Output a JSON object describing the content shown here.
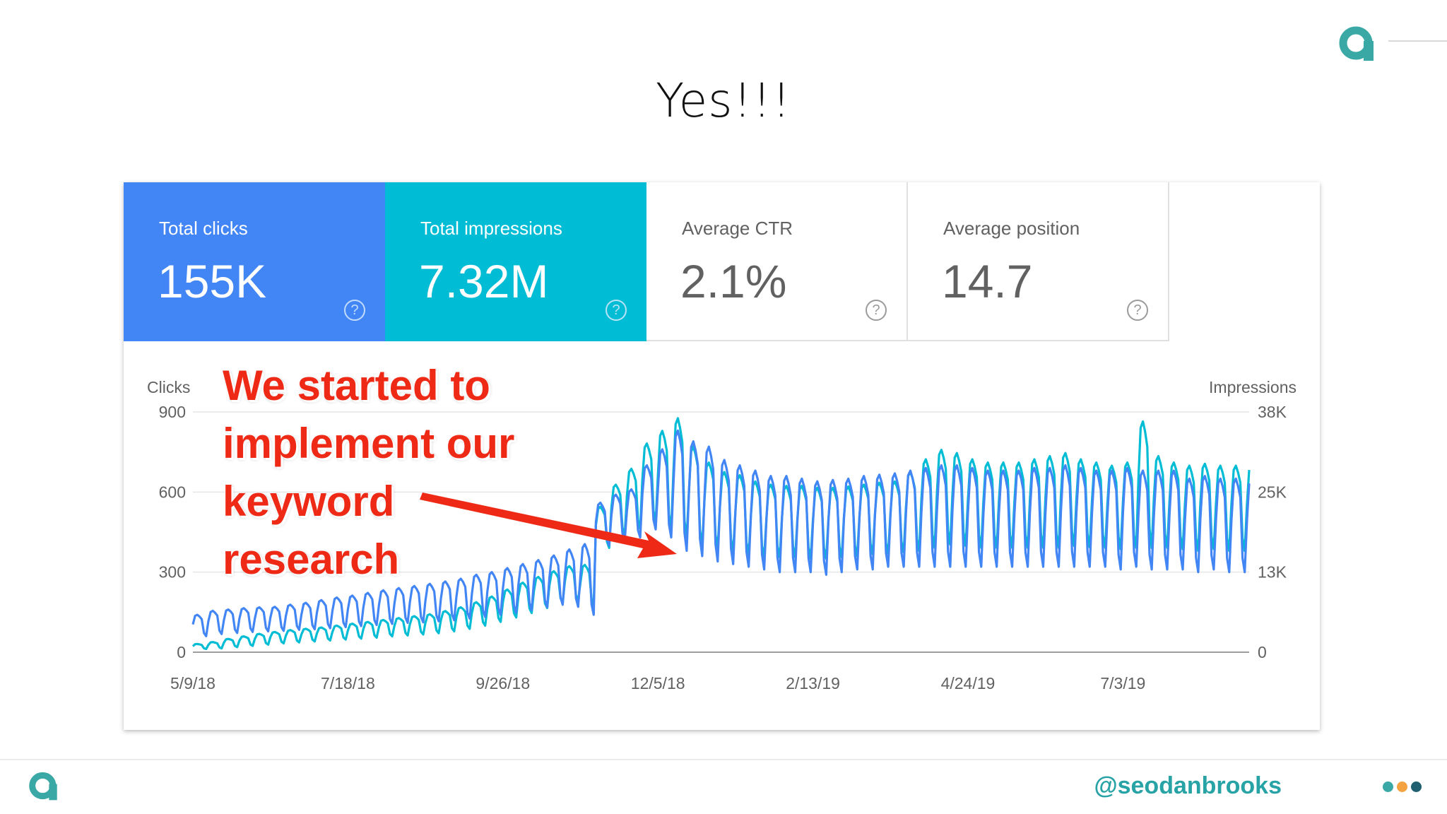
{
  "slide": {
    "title": "Yes!!!",
    "handle": "@seodanbrooks",
    "brand_color": "#3aa9a6",
    "footer_dots": [
      "#3aa9a6",
      "#f4a340",
      "#1f5f70"
    ]
  },
  "metrics": [
    {
      "label": "Total clicks",
      "value": "155K",
      "help": "?"
    },
    {
      "label": "Total impressions",
      "value": "7.32M",
      "help": "?"
    },
    {
      "label": "Average CTR",
      "value": "2.1%",
      "help": "?"
    },
    {
      "label": "Average position",
      "value": "14.7",
      "help": "?"
    }
  ],
  "annotation": {
    "lines": [
      "We started to",
      "implement our",
      "keyword",
      "research"
    ],
    "color": "#ee2a17"
  },
  "chart_data": {
    "type": "line",
    "xlabel": "",
    "y_left_label": "Clicks",
    "y_right_label": "Impressions",
    "y_left_range": [
      0,
      900
    ],
    "y_right_range": [
      0,
      38000
    ],
    "y_left_ticks": [
      "0",
      "300",
      "600",
      "900"
    ],
    "y_right_ticks": [
      "0",
      "13K",
      "25K",
      "38K"
    ],
    "x_range": [
      "2018-05-09",
      "2019-08-29"
    ],
    "x_ticks": [
      "5/9/18",
      "7/18/18",
      "9/26/18",
      "12/5/18",
      "2/13/19",
      "4/24/19",
      "7/3/19"
    ],
    "grid": true,
    "legend": "none",
    "colors": {
      "clicks": "#4285f4",
      "impressions": "#00bcd4"
    },
    "series": [
      {
        "axis": "left",
        "weekly_high": [
          140,
          155,
          160,
          165,
          168,
          170,
          178,
          185,
          195,
          205,
          212,
          222,
          232,
          240,
          248,
          256,
          265,
          275,
          290,
          300,
          315,
          330,
          345,
          362,
          385,
          405,
          560,
          590,
          610,
          700,
          760,
          830,
          790,
          770,
          720,
          700,
          680,
          660,
          660,
          650,
          640,
          645,
          650,
          660,
          665,
          670,
          680,
          690,
          700,
          700,
          690,
          680,
          680,
          680,
          690,
          690,
          700,
          690,
          680,
          680,
          690,
          680,
          680,
          680,
          650,
          660,
          650
        ],
        "weekly_low": [
          60,
          68,
          72,
          76,
          78,
          80,
          84,
          86,
          90,
          94,
          98,
          102,
          106,
          110,
          112,
          116,
          120,
          126,
          132,
          140,
          148,
          158,
          168,
          178,
          170,
          140,
          400,
          420,
          430,
          460,
          430,
          380,
          360,
          340,
          330,
          320,
          310,
          300,
          300,
          300,
          290,
          300,
          310,
          310,
          320,
          320,
          320,
          320,
          320,
          320,
          320,
          320,
          320,
          320,
          320,
          320,
          320,
          320,
          320,
          310,
          320,
          310,
          310,
          310,
          300,
          310,
          300
        ]
      },
      {
        "axis": "right",
        "weekly_high": [
          1300,
          1600,
          2100,
          2500,
          2900,
          3200,
          3500,
          3700,
          3900,
          4200,
          4500,
          4800,
          5100,
          5400,
          5700,
          6000,
          6500,
          7100,
          7900,
          8800,
          9900,
          11000,
          11900,
          12800,
          13600,
          13800,
          23000,
          26500,
          29000,
          33000,
          35000,
          37000,
          32500,
          30000,
          28500,
          28000,
          27000,
          26500,
          26300,
          26300,
          26000,
          26000,
          26200,
          26500,
          26800,
          27000,
          28500,
          30500,
          32000,
          31500,
          30500,
          30000,
          30000,
          30000,
          30500,
          31000,
          31500,
          30500,
          30000,
          29500,
          30000,
          36500,
          31000,
          30000,
          29500,
          29800,
          29500
        ],
        "weekly_low": [
          500,
          600,
          800,
          1000,
          1200,
          1400,
          1550,
          1700,
          1850,
          2000,
          2150,
          2300,
          2500,
          2650,
          2800,
          3000,
          3300,
          3700,
          4200,
          4800,
          5500,
          6200,
          7000,
          7800,
          8200,
          7500,
          16500,
          18500,
          19500,
          20500,
          19500,
          18000,
          17000,
          16500,
          16000,
          15500,
          15000,
          15000,
          15000,
          14800,
          14800,
          15000,
          15200,
          15500,
          15600,
          15800,
          16000,
          16500,
          17000,
          16800,
          16500,
          16500,
          16500,
          16500,
          16500,
          16500,
          16800,
          16600,
          16500,
          16300,
          16500,
          16500,
          16500,
          16300,
          16000,
          16300,
          16000
        ]
      }
    ]
  }
}
